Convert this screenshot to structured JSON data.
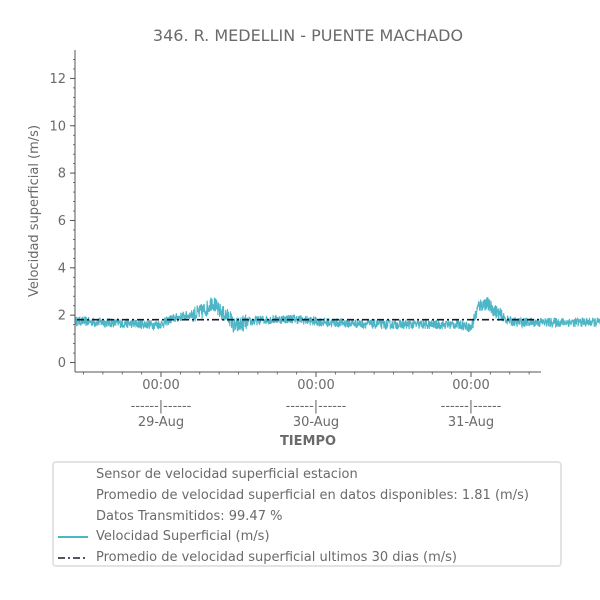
{
  "chart_data": {
    "type": "line",
    "title": "346. R. MEDELLIN - PUENTE MACHADO",
    "xlabel": "TIEMPO",
    "ylabel": "Velocidad superficial (m/s)",
    "ylim": [
      -0.4,
      13.2
    ],
    "yticks": [
      0,
      2,
      4,
      6,
      8,
      10,
      12
    ],
    "xlim_days": [
      0,
      3
    ],
    "xticks": [
      {
        "time": "00:00",
        "sep": "------|------",
        "date": "29-Aug"
      },
      {
        "time": "00:00",
        "sep": "------|------",
        "date": "30-Aug"
      },
      {
        "time": "00:00",
        "sep": "------|------",
        "date": "31-Aug"
      }
    ],
    "grid": false,
    "series": [
      {
        "name": "Velocidad Superficial (m/s)",
        "color": "#4cb6c6",
        "style": "solid",
        "baseline": [
          [
            0.0,
            1.75
          ],
          [
            0.5,
            1.6
          ],
          [
            0.55,
            1.62
          ],
          [
            0.62,
            1.85
          ],
          [
            0.8,
            2.1
          ],
          [
            0.85,
            2.3
          ],
          [
            0.88,
            2.6
          ],
          [
            0.92,
            2.2
          ],
          [
            1.0,
            1.85
          ],
          [
            1.02,
            1.5
          ],
          [
            1.1,
            1.7
          ],
          [
            1.2,
            1.8
          ],
          [
            1.4,
            1.85
          ],
          [
            1.6,
            1.7
          ],
          [
            2.0,
            1.6
          ],
          [
            2.5,
            1.6
          ],
          [
            2.55,
            1.45
          ],
          [
            2.6,
            2.4
          ],
          [
            2.65,
            2.5
          ],
          [
            2.72,
            2.1
          ],
          [
            2.78,
            1.8
          ],
          [
            2.84,
            1.7
          ]
        ]
      },
      {
        "name": "Promedio de velocidad superficial ultimos 30 dias (m/s)",
        "color": "#1a1a2e",
        "style": "dash-dot",
        "value": 1.81
      }
    ],
    "legend": {
      "placement": "bottom",
      "info_lines": [
        "Sensor de velocidad superficial estacion",
        "Promedio de velocidad superficial en datos disponibles: 1.81 (m/s)",
        "Datos Transmitidos: 99.47 %"
      ]
    }
  }
}
